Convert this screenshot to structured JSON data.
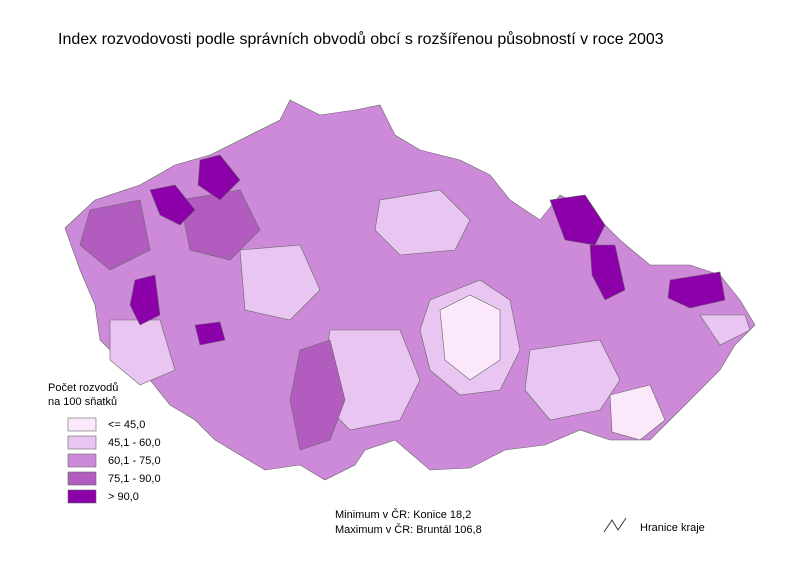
{
  "title": "Index rozvodovosti podle správních obvodů obcí s rozšířenou působností v roce 2003",
  "legend": {
    "title": [
      "Počet rozvodů",
      "na 100 sňatků"
    ],
    "items": [
      {
        "label": "<= 45,0",
        "color": "#fbe8fb"
      },
      {
        "label": "45,1 - 60,0",
        "color": "#e9c6f1"
      },
      {
        "label": "60,1 - 75,0",
        "color": "#cd8ad8"
      },
      {
        "label": "75,1 - 90,0",
        "color": "#b25cc0"
      },
      {
        "label": "> 90,0",
        "color": "#8c00aa"
      }
    ]
  },
  "notes": [
    "Minimum v ČR: Konice 18,2",
    "Maximum v ČR: Bruntál 106,8"
  ],
  "boundary_legend": "Hranice kraje"
}
